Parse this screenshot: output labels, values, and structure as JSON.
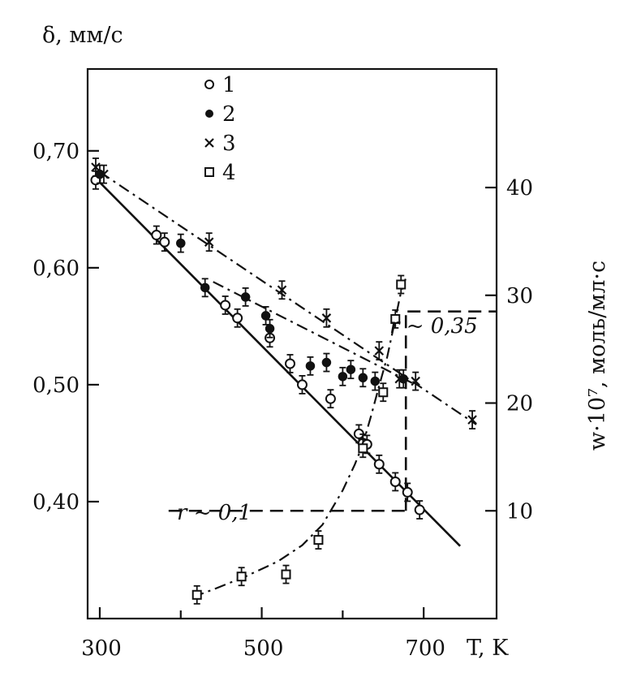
{
  "chart_data": {
    "type": "scatter",
    "left_axis": {
      "label": "δ, мм/с",
      "lim": [
        0.3,
        0.77
      ],
      "ticks": [
        0.4,
        0.5,
        0.6,
        0.7
      ],
      "tick_labels": [
        "0,40",
        "0,50",
        "0,60",
        "0,70"
      ]
    },
    "right_axis": {
      "label": "w·10⁷, моль/мл·с",
      "lim": [
        0,
        51
      ],
      "ticks": [
        10,
        20,
        30,
        40
      ],
      "tick_labels": [
        "10",
        "20",
        "30",
        "40"
      ]
    },
    "x_axis": {
      "label": "T, K",
      "lim": [
        285,
        790
      ],
      "ticks": [
        300,
        500,
        700
      ],
      "tick_labels": [
        "300",
        "500",
        "700"
      ],
      "minor_ticks": [
        400,
        600
      ]
    },
    "legend": {
      "placement": "top-left",
      "entries": [
        {
          "marker": "open-circle",
          "label": "1"
        },
        {
          "marker": "filled-circle",
          "label": "2"
        },
        {
          "marker": "cross",
          "label": "3"
        },
        {
          "marker": "open-square",
          "label": "4"
        }
      ]
    },
    "annotations": [
      {
        "text": "r ~ 0,1"
      },
      {
        "text": "r ~ 0,35"
      }
    ],
    "series": [
      {
        "label": "1",
        "marker": "open-circle",
        "axis": "left",
        "points": [
          [
            295,
            0.675
          ],
          [
            370,
            0.628
          ],
          [
            380,
            0.622
          ],
          [
            455,
            0.568
          ],
          [
            470,
            0.557
          ],
          [
            510,
            0.54
          ],
          [
            535,
            0.518
          ],
          [
            550,
            0.5
          ],
          [
            585,
            0.488
          ],
          [
            620,
            0.458
          ],
          [
            625,
            0.45
          ],
          [
            630,
            0.449
          ],
          [
            645,
            0.432
          ],
          [
            665,
            0.417
          ],
          [
            680,
            0.408
          ],
          [
            695,
            0.393
          ]
        ],
        "fit": {
          "style": "solid",
          "x": [
            300,
            745
          ],
          "y": [
            0.673,
            0.362
          ]
        }
      },
      {
        "label": "2",
        "marker": "filled-circle",
        "axis": "left",
        "points": [
          [
            300,
            0.68
          ],
          [
            400,
            0.621
          ],
          [
            430,
            0.583
          ],
          [
            480,
            0.575
          ],
          [
            505,
            0.559
          ],
          [
            510,
            0.548
          ],
          [
            560,
            0.516
          ],
          [
            580,
            0.519
          ],
          [
            600,
            0.507
          ],
          [
            610,
            0.513
          ],
          [
            625,
            0.506
          ],
          [
            640,
            0.503
          ],
          [
            675,
            0.505
          ]
        ],
        "fit": {
          "style": "dash-dot",
          "x": [
            440,
            690
          ],
          "y": [
            0.588,
            0.5
          ]
        }
      },
      {
        "label": "3",
        "marker": "cross",
        "axis": "left",
        "points": [
          [
            295,
            0.686
          ],
          [
            305,
            0.68
          ],
          [
            435,
            0.622
          ],
          [
            525,
            0.581
          ],
          [
            580,
            0.557
          ],
          [
            645,
            0.529
          ],
          [
            670,
            0.505
          ],
          [
            690,
            0.503
          ],
          [
            760,
            0.47
          ]
        ],
        "fit": {
          "style": "dash-dot",
          "x": [
            300,
            765
          ],
          "y": [
            0.682,
            0.466
          ]
        }
      },
      {
        "label": "4",
        "marker": "open-square",
        "axis": "right",
        "points": [
          [
            420,
            2.2
          ],
          [
            475,
            3.9
          ],
          [
            530,
            4.1
          ],
          [
            570,
            7.3
          ],
          [
            625,
            15.8
          ],
          [
            650,
            21.0
          ],
          [
            665,
            27.8
          ],
          [
            672,
            31.0
          ]
        ],
        "fit": {
          "style": "dash-dot",
          "x": [
            415,
            440,
            480,
            520,
            550,
            575,
            600,
            615,
            625,
            635,
            645,
            655,
            665,
            672,
            678
          ],
          "y": [
            2.0,
            2.7,
            3.9,
            5.3,
            6.8,
            8.7,
            11.9,
            14.3,
            16.2,
            18.8,
            21.6,
            24.3,
            27.8,
            30.3,
            31.6
          ]
        }
      }
    ],
    "reference_lines": [
      {
        "style": "dash",
        "axis": "right",
        "y": 10,
        "x": [
          385,
          680
        ]
      },
      {
        "style": "dash",
        "axis": "right",
        "y": 28.5,
        "x": [
          680,
          790
        ]
      },
      {
        "style": "dash",
        "axis": "none",
        "vertical_x": 678,
        "y_right": [
          10,
          28.5
        ]
      }
    ]
  }
}
